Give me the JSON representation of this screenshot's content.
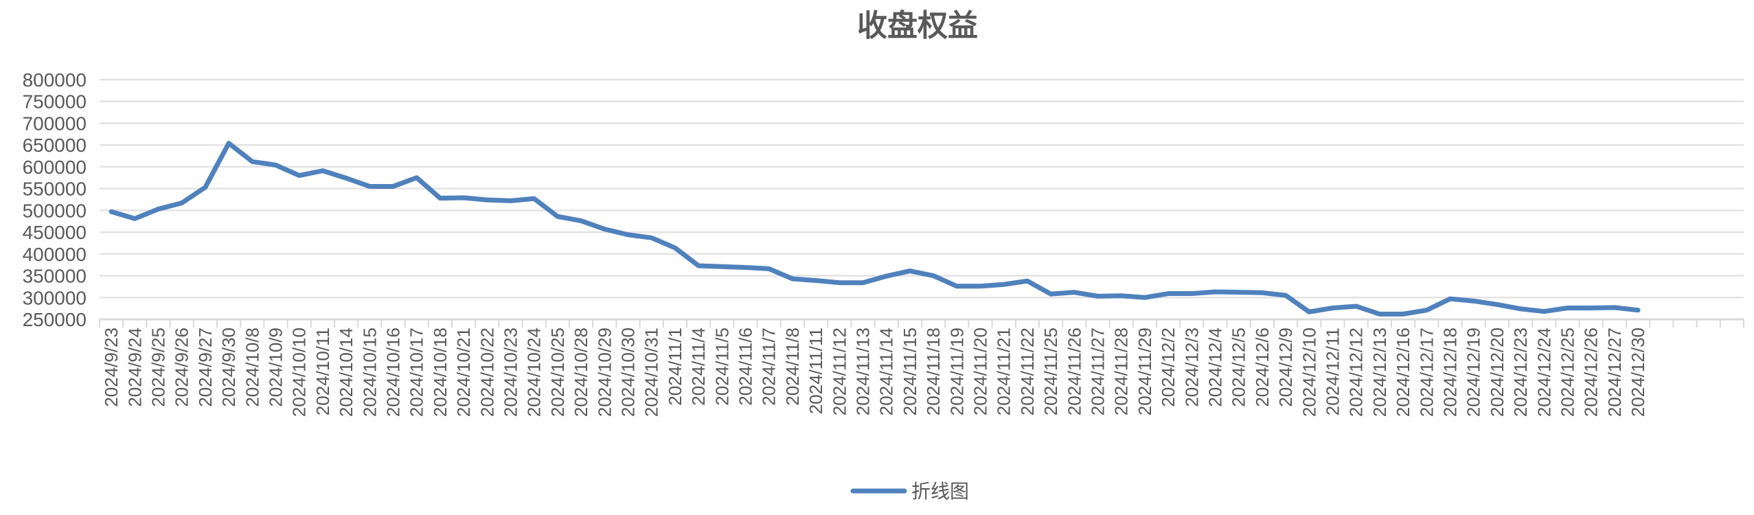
{
  "chart_data": {
    "type": "line",
    "title": "收盘权益",
    "xlabel": "",
    "ylabel": "",
    "ylim": [
      250000,
      800000
    ],
    "yticks": [
      "250000",
      "300000",
      "350000",
      "400000",
      "450000",
      "500000",
      "550000",
      "600000",
      "650000",
      "700000",
      "750000",
      "800000"
    ],
    "grid": true,
    "legend_position": "bottom",
    "colors": {
      "series": "#4F81BD",
      "grid": "#E3E3E3",
      "text": "#595959"
    },
    "categories": [
      "2024/9/23",
      "2024/9/24",
      "2024/9/25",
      "2024/9/26",
      "2024/9/27",
      "2024/9/30",
      "2024/10/8",
      "2024/10/9",
      "2024/10/10",
      "2024/10/11",
      "2024/10/14",
      "2024/10/15",
      "2024/10/16",
      "2024/10/17",
      "2024/10/18",
      "2024/10/21",
      "2024/10/22",
      "2024/10/23",
      "2024/10/24",
      "2024/10/25",
      "2024/10/28",
      "2024/10/29",
      "2024/10/30",
      "2024/10/31",
      "2024/11/1",
      "2024/11/4",
      "2024/11/5",
      "2024/11/6",
      "2024/11/7",
      "2024/11/8",
      "2024/11/11",
      "2024/11/12",
      "2024/11/13",
      "2024/11/14",
      "2024/11/15",
      "2024/11/18",
      "2024/11/19",
      "2024/11/20",
      "2024/11/21",
      "2024/11/22",
      "2024/11/25",
      "2024/11/26",
      "2024/11/27",
      "2024/11/28",
      "2024/11/29",
      "2024/12/2",
      "2024/12/3",
      "2024/12/4",
      "2024/12/5",
      "2024/12/6",
      "2024/12/9",
      "2024/12/10",
      "2024/12/11",
      "2024/12/12",
      "2024/12/13",
      "2024/12/16",
      "2024/12/17",
      "2024/12/18",
      "2024/12/19",
      "2024/12/20",
      "2024/12/23",
      "2024/12/24",
      "2024/12/25",
      "2024/12/26",
      "2024/12/27",
      "2024/12/30"
    ],
    "series": [
      {
        "name": "折线图",
        "values": [
          497000,
          481000,
          503000,
          517000,
          553000,
          654000,
          612000,
          604000,
          580000,
          591000,
          574000,
          555000,
          555000,
          575000,
          528000,
          529000,
          524000,
          522000,
          527000,
          486000,
          476000,
          457000,
          444000,
          437000,
          414000,
          373000,
          371000,
          369000,
          366000,
          343000,
          339000,
          334000,
          334000,
          349000,
          361000,
          350000,
          326000,
          326000,
          330000,
          338000,
          308000,
          312000,
          303000,
          304000,
          300000,
          309000,
          309000,
          313000,
          312000,
          311000,
          305000,
          267000,
          276000,
          280000,
          262000,
          262000,
          271000,
          297000,
          292000,
          284000,
          274000,
          268000,
          276000,
          276000,
          277000,
          271000
        ]
      }
    ]
  }
}
